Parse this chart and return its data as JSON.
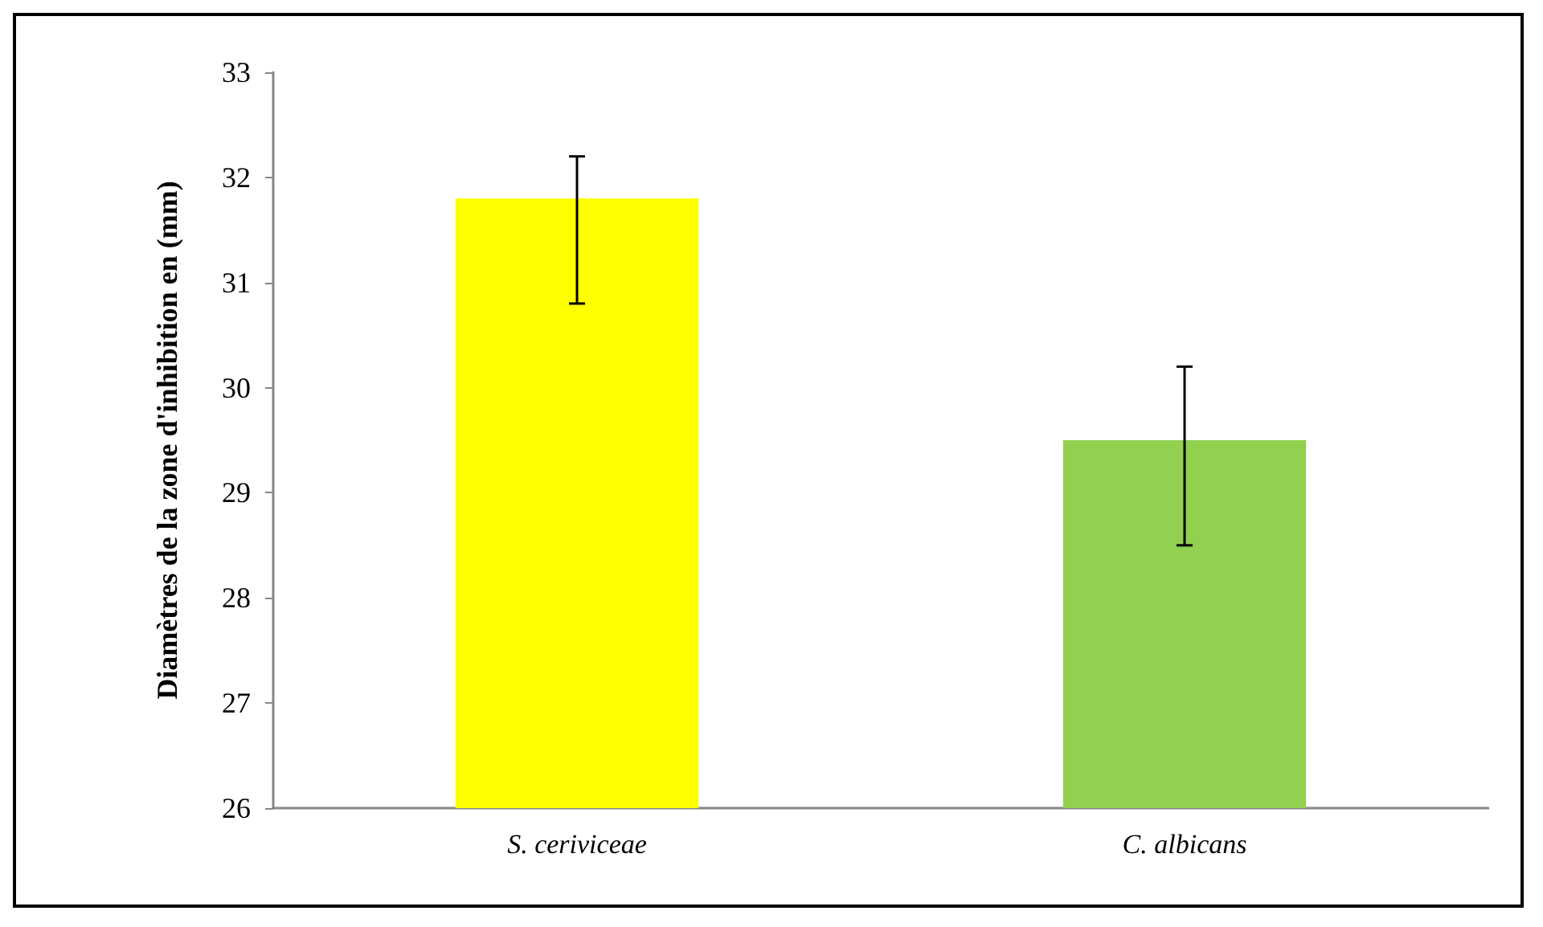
{
  "chart_data": {
    "type": "bar",
    "ylabel": "Diamètres de la zone d'inhibition en (mm)",
    "categories": [
      "S. ceriviceae",
      "C. albicans"
    ],
    "values": [
      31.8,
      29.5
    ],
    "colors": [
      "#ffff00",
      "#92d050"
    ],
    "errors": [
      [
        30.8,
        32.2
      ],
      [
        28.5,
        30.2
      ]
    ],
    "ylim": [
      26,
      33
    ],
    "yticks": [
      26,
      27,
      28,
      29,
      30,
      31,
      32,
      33
    ],
    "grid": false
  }
}
